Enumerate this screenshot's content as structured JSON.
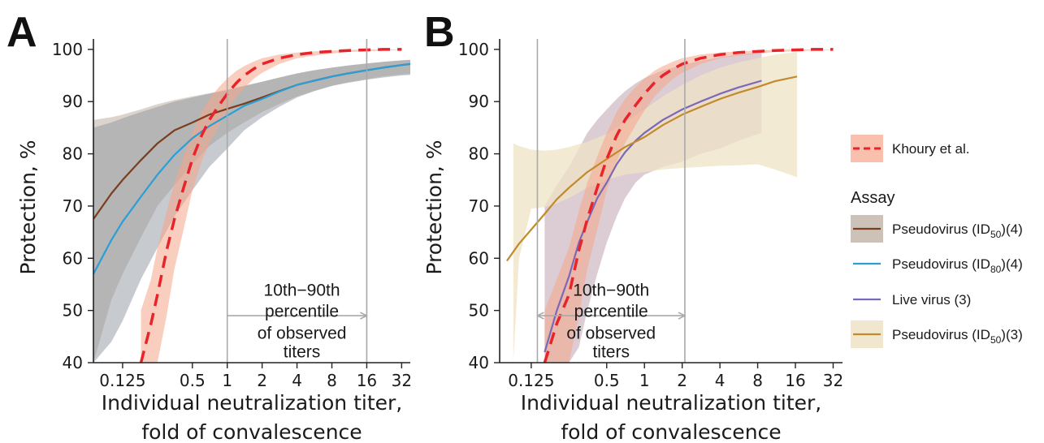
{
  "chart_data": [
    {
      "panel": "A",
      "type": "line",
      "xlabel": [
        "Individual neutralization titer,",
        "fold of convalescence"
      ],
      "ylabel": "Protection, %",
      "x_scale": "log2",
      "xlim": [
        0.07,
        38
      ],
      "ylim": [
        40,
        102
      ],
      "x_ticks": [
        {
          "v": 0.125,
          "label": "0.125"
        },
        {
          "v": 0.5,
          "label": "0.5"
        },
        {
          "v": 1,
          "label": "1"
        },
        {
          "v": 2,
          "label": "2"
        },
        {
          "v": 4,
          "label": "4"
        },
        {
          "v": 8,
          "label": "8"
        },
        {
          "v": 16,
          "label": "16"
        },
        {
          "v": 32,
          "label": "32"
        }
      ],
      "y_ticks": [
        {
          "v": 40,
          "label": "40"
        },
        {
          "v": 50,
          "label": "50"
        },
        {
          "v": 60,
          "label": "60"
        },
        {
          "v": 70,
          "label": "70"
        },
        {
          "v": 80,
          "label": "80"
        },
        {
          "v": 90,
          "label": "90"
        },
        {
          "v": 100,
          "label": "100"
        }
      ],
      "percentile_lines": [
        1,
        16
      ],
      "percentile_arrow": {
        "from": 1,
        "to": 16,
        "y": 49,
        "arrows": "end"
      },
      "annotation": [
        "10th−90th",
        "percentile",
        "of observed",
        "titers"
      ],
      "series": [
        {
          "name": "Pseudovirus (ID50)(4)",
          "key": "pv50_4",
          "color": "#7a3e1d",
          "style": "solid",
          "band_color": "#b7a89a",
          "x": [
            0.07,
            0.1,
            0.125,
            0.18,
            0.25,
            0.35,
            0.5,
            0.7,
            1,
            1.4,
            2,
            2.8,
            4,
            5.6,
            8,
            11,
            16,
            22,
            32,
            38
          ],
          "y": [
            67.5,
            72.4,
            75,
            78.8,
            82,
            84.5,
            86,
            87.5,
            88.6,
            89.6,
            90.8,
            92,
            93.2,
            94,
            94.8,
            95.4,
            96,
            96.5,
            97,
            97.2
          ],
          "lower": [
            40,
            52,
            57,
            64,
            70,
            74,
            78,
            81.5,
            84,
            86,
            88,
            89.5,
            91,
            92,
            93,
            93.7,
            94.3,
            94.8,
            95.2,
            95.3
          ],
          "upper": [
            86.5,
            87,
            87.5,
            88.5,
            89.5,
            90.3,
            91,
            91.6,
            92.3,
            93,
            93.8,
            94.6,
            95.4,
            96,
            96.5,
            96.9,
            97.3,
            97.6,
            97.9,
            98
          ]
        },
        {
          "name": "Pseudovirus (ID80)(4)",
          "key": "pv80_4",
          "color": "#2a9fd6",
          "style": "solid",
          "band_color": "#8f98a0",
          "x": [
            0.07,
            0.1,
            0.125,
            0.18,
            0.25,
            0.35,
            0.5,
            0.7,
            1,
            1.4,
            2,
            2.8,
            4,
            5.6,
            8,
            11,
            16,
            22,
            32,
            38
          ],
          "y": [
            57,
            63.5,
            67,
            71.8,
            76,
            79.8,
            83,
            85.3,
            87.3,
            89.2,
            90.5,
            91.9,
            93.2,
            94,
            94.8,
            95.4,
            96,
            96.5,
            97,
            97.2
          ],
          "lower": [
            40,
            44,
            48,
            56,
            62,
            68,
            73,
            77.5,
            81,
            84.5,
            87,
            89,
            90.8,
            92,
            93,
            93.6,
            94.2,
            94.6,
            95,
            95.1
          ],
          "upper": [
            85,
            86,
            86.8,
            88,
            89,
            90,
            90.8,
            91.5,
            92.2,
            93,
            93.8,
            94.6,
            95.4,
            96,
            96.5,
            96.9,
            97.3,
            97.6,
            97.9,
            98
          ]
        },
        {
          "name": "Khoury et al.",
          "key": "khoury",
          "color": "#e8232a",
          "style": "dashed",
          "band_color": "#f6a58a",
          "x": [
            0.18,
            0.22,
            0.25,
            0.3,
            0.35,
            0.42,
            0.5,
            0.6,
            0.7,
            0.85,
            1,
            1.2,
            1.4,
            1.7,
            2,
            2.8,
            4,
            5.6,
            8,
            11,
            16,
            22,
            32
          ],
          "y": [
            40,
            47.5,
            53,
            61.5,
            67.5,
            73.5,
            79,
            83.5,
            86.5,
            89.3,
            91.5,
            93.6,
            95,
            96.3,
            97.2,
            98.3,
            99,
            99.4,
            99.6,
            99.8,
            99.9,
            100,
            100
          ],
          "lower": [
            40,
            40,
            40,
            49,
            58,
            65.5,
            73,
            78.5,
            82,
            85.5,
            88.3,
            90.9,
            92.6,
            94.4,
            95.5,
            97.2,
            98.3,
            98.8,
            99.2,
            99.5,
            99.6,
            99.8,
            99.9
          ],
          "upper": [
            50,
            56,
            62,
            69,
            74.5,
            79.5,
            84,
            88,
            90.5,
            92.8,
            94.4,
            95.9,
            96.8,
            97.7,
            98.3,
            99,
            99.4,
            99.6,
            99.8,
            99.9,
            100,
            100,
            100
          ]
        }
      ]
    },
    {
      "panel": "B",
      "type": "line",
      "xlabel": [
        "Individual neutralization titer,",
        "fold of convalescence"
      ],
      "ylabel": "Protection, %",
      "x_scale": "log2",
      "xlim": [
        0.07,
        38
      ],
      "ylim": [
        40,
        102
      ],
      "x_ticks": [
        {
          "v": 0.125,
          "label": "0.125"
        },
        {
          "v": 0.5,
          "label": "0.5"
        },
        {
          "v": 1,
          "label": "1"
        },
        {
          "v": 2,
          "label": "2"
        },
        {
          "v": 4,
          "label": "4"
        },
        {
          "v": 8,
          "label": "8"
        },
        {
          "v": 16,
          "label": "16"
        },
        {
          "v": 32,
          "label": "32"
        }
      ],
      "y_ticks": [
        {
          "v": 40,
          "label": "40"
        },
        {
          "v": 50,
          "label": "50"
        },
        {
          "v": 60,
          "label": "60"
        },
        {
          "v": 70,
          "label": "70"
        },
        {
          "v": 80,
          "label": "80"
        },
        {
          "v": 90,
          "label": "90"
        },
        {
          "v": 100,
          "label": "100"
        }
      ],
      "percentile_lines": [
        0.14,
        2.1
      ],
      "percentile_arrow": {
        "from": 0.14,
        "to": 2.1,
        "y": 49,
        "arrows": "both"
      },
      "annotation": [
        "10th−90th",
        "percentile",
        "of observed",
        "titers"
      ],
      "series": [
        {
          "name": "Pseudovirus (ID50)(4)",
          "key": "pv50_4",
          "color": "#7a3e1d",
          "style": "solid",
          "band_color": "#b7a89a",
          "x": [],
          "y": [],
          "lower": [],
          "upper": []
        },
        {
          "name": "Pseudovirus (ID80)(4)",
          "key": "pv80_4",
          "color": "#2a9fd6",
          "style": "solid",
          "band_color": "#8f98a0",
          "x": [],
          "y": [],
          "lower": [],
          "upper": []
        },
        {
          "name": "Live virus (3)",
          "key": "live_3",
          "color": "#7b68b8",
          "style": "solid",
          "band_color": "#b99aa8",
          "x": [
            0.16,
            0.2,
            0.25,
            0.3,
            0.35,
            0.42,
            0.5,
            0.6,
            0.7,
            0.85,
            1,
            1.4,
            2,
            2.8,
            4,
            5.6,
            8.6
          ],
          "y": [
            42,
            50,
            56.5,
            63,
            67,
            71.5,
            74.5,
            78,
            80.3,
            82.5,
            84,
            86.5,
            88.5,
            90,
            91.5,
            92.7,
            94
          ],
          "lower": [
            40,
            40,
            40,
            43,
            50,
            57,
            63,
            68,
            71.5,
            74.5,
            76,
            77.5,
            78.5,
            80,
            81,
            82.5,
            84
          ],
          "upper": [
            70,
            74,
            77.5,
            81,
            84,
            86.5,
            88.5,
            90.5,
            92,
            93.5,
            94.5,
            96,
            97,
            97.8,
            98.5,
            99,
            99.4
          ]
        },
        {
          "name": "Pseudovirus (ID50)(3)",
          "key": "pv50_3",
          "color": "#c28a2b",
          "style": "solid",
          "band_color": "#efe3c6",
          "x": [
            0.08,
            0.1,
            0.125,
            0.16,
            0.2,
            0.25,
            0.35,
            0.5,
            0.7,
            1,
            1.4,
            2,
            2.8,
            4,
            5.6,
            8,
            11,
            16.5
          ],
          "y": [
            59.5,
            62.8,
            65.5,
            68.5,
            71.3,
            73.5,
            76.5,
            79,
            81.3,
            83.2,
            85.5,
            87.5,
            89,
            90.5,
            91.7,
            92.8,
            93.9,
            94.8
          ],
          "lower": [
            40,
            40,
            40,
            40,
            40,
            40,
            40,
            40,
            40,
            40,
            40,
            40,
            40,
            40,
            40,
            40,
            40,
            40
          ],
          "upper": [
            82,
            81.3,
            80.6,
            80.5,
            80.8,
            81.3,
            82,
            82.8,
            83.8,
            85,
            86.5,
            88,
            89.5,
            90.8,
            91.8,
            92.8,
            93.5,
            94
          ],
          "band_x": [
            0.09,
            0.1,
            0.125,
            0.16,
            0.2,
            0.25,
            0.35,
            0.5,
            0.7,
            1,
            1.4,
            2,
            2.8,
            4,
            5.6,
            8,
            11,
            16.5
          ],
          "band_lower": [
            40,
            60,
            69.5,
            69.8,
            70.5,
            71.5,
            73.5,
            75,
            76,
            76.5,
            77,
            77.3,
            77.5,
            77.7,
            77.8,
            78,
            77,
            75.5
          ],
          "band_upper": [
            82,
            81.5,
            80.8,
            80.6,
            80.8,
            81.3,
            82.3,
            83.8,
            86,
            88.5,
            91,
            93.2,
            95,
            96.5,
            97.5,
            98.3,
            99,
            99.5
          ]
        },
        {
          "name": "Khoury et al.",
          "key": "khoury",
          "color": "#e8232a",
          "style": "dashed",
          "band_color": "#f6a58a",
          "x": [
            0.16,
            0.2,
            0.25,
            0.3,
            0.35,
            0.42,
            0.5,
            0.6,
            0.7,
            0.85,
            1,
            1.2,
            1.4,
            1.7,
            2,
            2.8,
            4,
            5.6,
            8,
            11,
            16,
            22,
            32
          ],
          "y": [
            40,
            47.5,
            53,
            61.5,
            67.5,
            73.5,
            79,
            83.5,
            86.5,
            89.3,
            91.5,
            93.6,
            95,
            96.3,
            97.2,
            98.3,
            99,
            99.4,
            99.6,
            99.8,
            99.9,
            100,
            100
          ],
          "lower": [
            40,
            40,
            40,
            49,
            58,
            65.5,
            73,
            78.5,
            82,
            85.5,
            88.3,
            90.9,
            92.6,
            94.4,
            95.5,
            97.2,
            98.3,
            98.8,
            99.2,
            99.5,
            99.6,
            99.8,
            99.9
          ],
          "upper": [
            50,
            56,
            62,
            69,
            74.5,
            79.5,
            84,
            88,
            90.5,
            92.8,
            94.4,
            95.9,
            96.8,
            97.7,
            98.3,
            99,
            99.4,
            99.6,
            99.8,
            99.9,
            100,
            100,
            100
          ]
        }
      ]
    }
  ],
  "legend": {
    "title": "Assay",
    "items": [
      {
        "key": "khoury",
        "label": "Khoury et al.",
        "sub": "",
        "suffix": "",
        "color": "#e8232a",
        "band": "#f6a58a",
        "style": "dashed"
      },
      {
        "key": "pv50_4",
        "label": "Pseudovirus (ID",
        "sub": "50",
        "suffix": ")(4)",
        "color": "#7a3e1d",
        "band": "#b7a89a",
        "style": "solid"
      },
      {
        "key": "pv80_4",
        "label": "Pseudovirus (ID",
        "sub": "80",
        "suffix": ")(4)",
        "color": "#2a9fd6",
        "band": "",
        "style": "solid"
      },
      {
        "key": "live_3",
        "label": "Live virus (3)",
        "sub": "",
        "suffix": "",
        "color": "#7b68b8",
        "band": "",
        "style": "solid"
      },
      {
        "key": "pv50_3",
        "label": "Pseudovirus (ID",
        "sub": "50",
        "suffix": ")(3)",
        "color": "#c28a2b",
        "band": "#efe3c6",
        "style": "solid"
      }
    ]
  }
}
